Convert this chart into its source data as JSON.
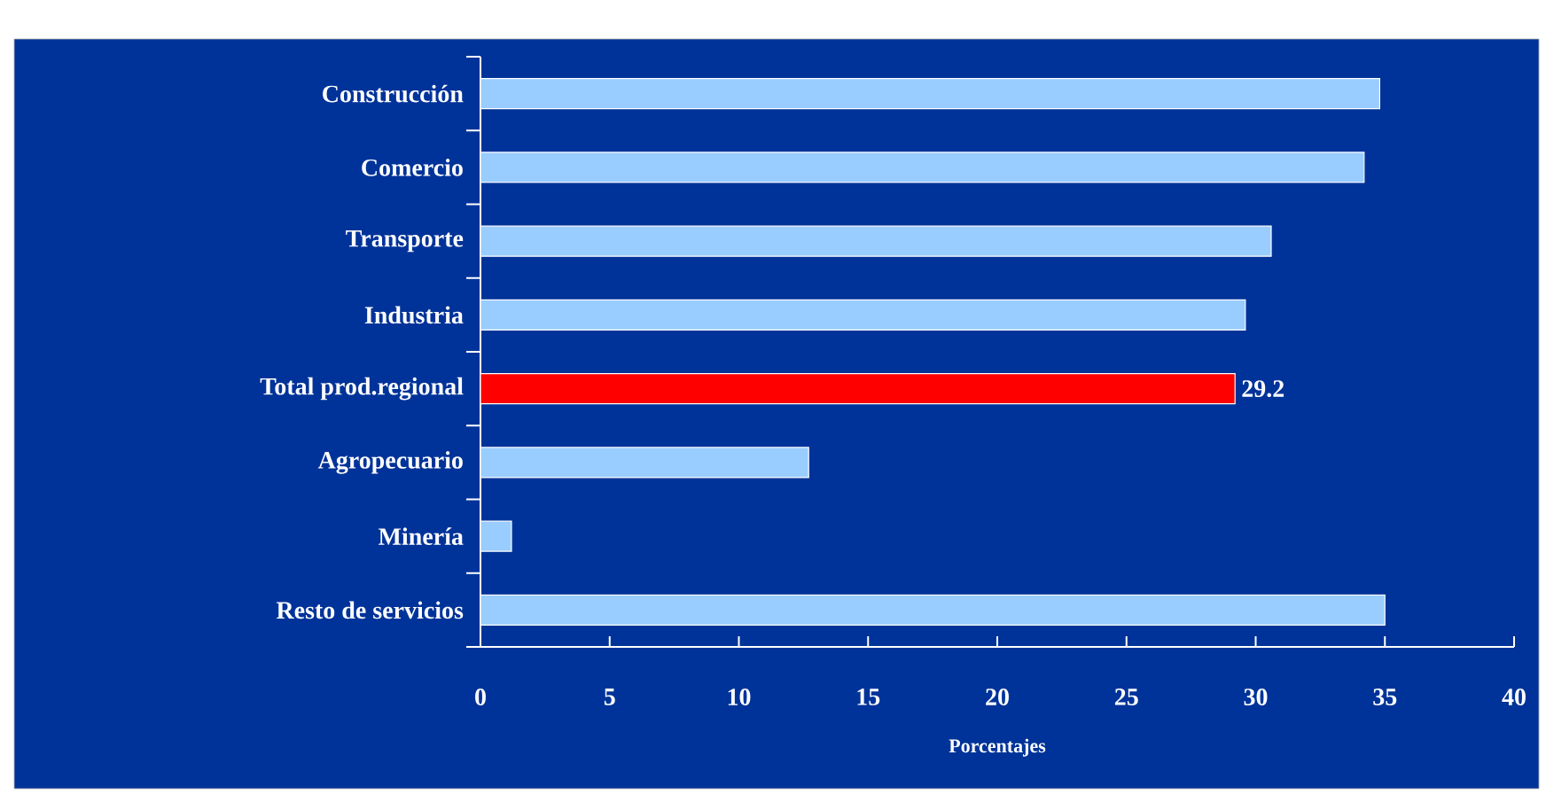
{
  "chart_data": {
    "type": "bar",
    "orientation": "horizontal",
    "xlabel": "Porcentajes",
    "categories": [
      "Construcción",
      "Comercio",
      "Transporte",
      "Industria",
      "Total prod.regional",
      "Agropecuario",
      "Minería",
      "Resto de servicios"
    ],
    "values": [
      34.8,
      34.2,
      30.6,
      29.6,
      29.2,
      12.7,
      1.2,
      35.0
    ],
    "colors": [
      "#99ccff",
      "#99ccff",
      "#99ccff",
      "#99ccff",
      "#ff0000",
      "#99ccff",
      "#99ccff",
      "#99ccff"
    ],
    "value_labels": [
      null,
      null,
      null,
      null,
      "29.2",
      null,
      null,
      null
    ],
    "xlim": [
      0,
      40
    ],
    "xticks": [
      0,
      5,
      10,
      15,
      20,
      25,
      30,
      35,
      40
    ],
    "grid": false
  }
}
